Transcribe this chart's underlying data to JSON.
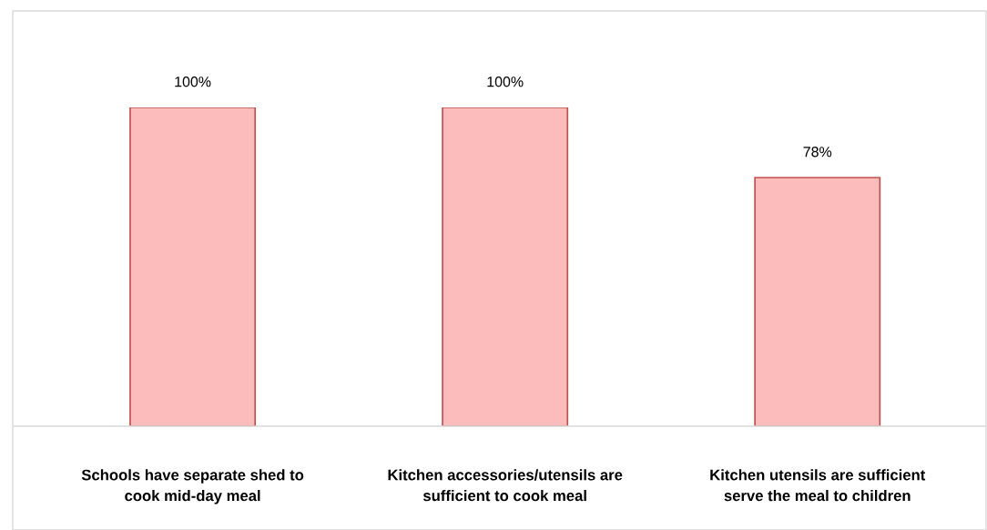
{
  "chart_data": {
    "type": "bar",
    "categories": [
      "Schools have separate shed to\ncook mid-day meal",
      "Kitchen accessories/utensils are\nsufficient to cook meal",
      "Kitchen utensils are sufficient\nserve the meal to children"
    ],
    "values": [
      100,
      100,
      78
    ],
    "value_labels": [
      "100%",
      "100%",
      "78%"
    ],
    "color": "#fdbcbc"
  }
}
